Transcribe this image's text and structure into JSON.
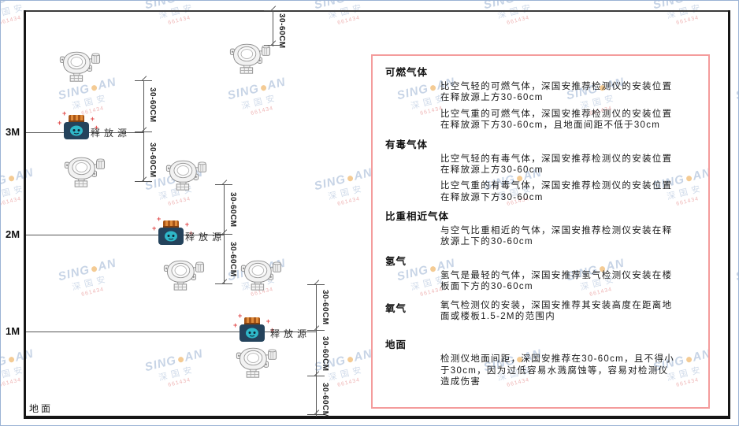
{
  "diagram": {
    "ground_label": "地面",
    "scale_labels": {
      "m3": "3M",
      "m2": "2M",
      "m1": "1M"
    },
    "dim_label": "30-60CM",
    "release_source_label": "释放源"
  },
  "watermark": {
    "brand_left": "SING",
    "brand_right": "AN",
    "cn": "深国安",
    "code": "661434"
  },
  "panel": {
    "border_color": "#f49c9c",
    "sections": [
      {
        "heading": "可燃气体",
        "paragraphs": [
          "比空气轻的可燃气体，深国安推荐检测仪的安装位置在释放源上方30-60cm",
          "比空气重的可燃气体，深国安推荐检测仪的安装位置在释放源下方30-60cm，且地面间距不低于30cm"
        ]
      },
      {
        "heading": "有毒气体",
        "paragraphs": [
          "比空气轻的有毒气体，深国安推荐检测仪的安装位置在释放源上方30-60cm",
          "比空气重的有毒气体，深国安推荐检测仪的安装位置在释放源下方30-60cm"
        ]
      },
      {
        "heading": "比重相近气体",
        "paragraphs": [
          "与空气比重相近的气体，深国安推荐检测仪安装在释放源上下的30-60cm"
        ]
      },
      {
        "heading": "氢气",
        "paragraphs": [
          "氢气是最轻的气体，深国安推荐氢气检测仪安装在楼板面下方的30-60cm"
        ]
      },
      {
        "heading": "氧气",
        "inline": true,
        "paragraphs": [
          "氧气检测仪的安装，深国安推荐其安装高度在距离地面或楼板1.5-2M的范围内"
        ]
      },
      {
        "heading": "地面",
        "paragraphs": [
          "检测仪地面间距，深国安推荐在30-60cm，且不得小于30cm，因为过低容易水溅腐蚀等，容易对检测仪造成伤害"
        ]
      }
    ]
  }
}
